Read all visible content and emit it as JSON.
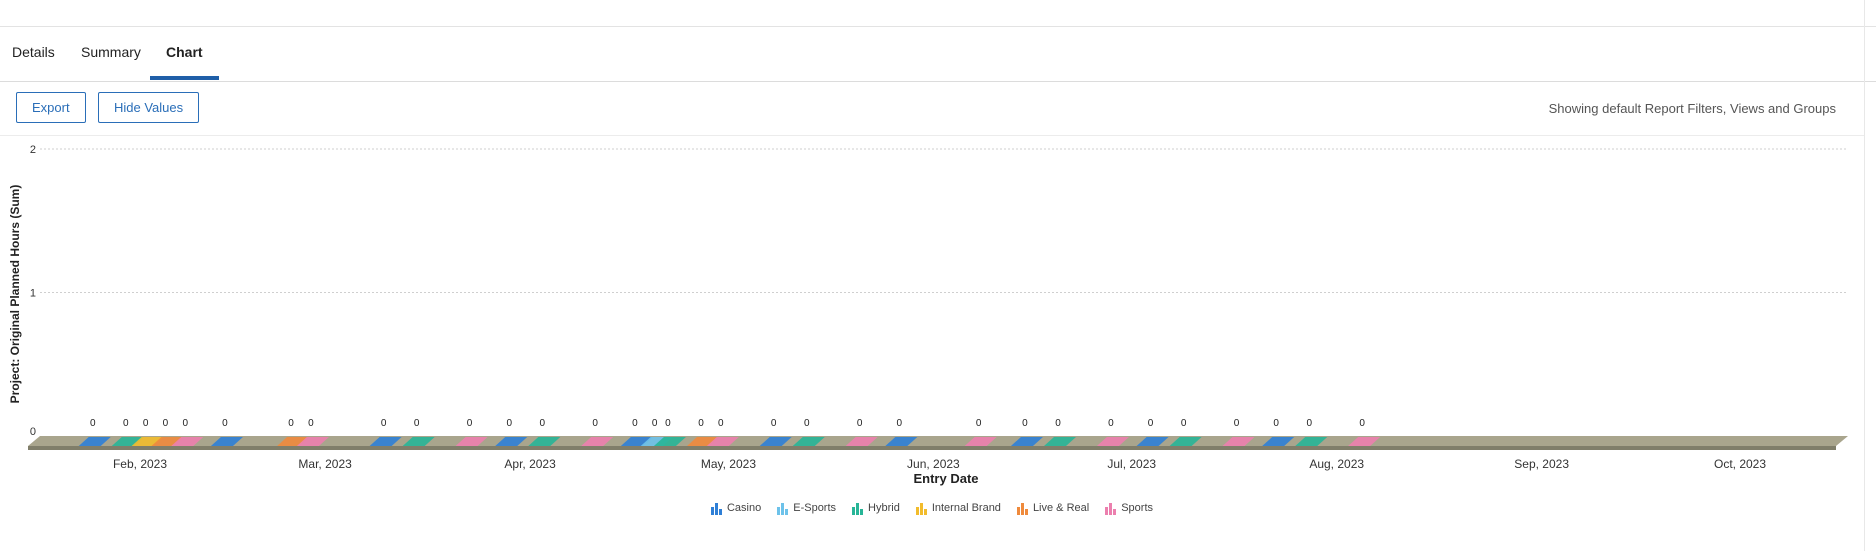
{
  "tabs": [
    {
      "label": "Details",
      "active": false
    },
    {
      "label": "Summary",
      "active": false
    },
    {
      "label": "Chart",
      "active": true
    }
  ],
  "toolbar": {
    "export_label": "Export",
    "hide_values_label": "Hide Values",
    "filter_note": "Showing default Report Filters, Views and Groups"
  },
  "colors": {
    "accent": "#1f5fa8",
    "Casino": "#2e7fd6",
    "E-Sports": "#6dc2ea",
    "Hybrid": "#27b597",
    "Internal Brand": "#f2bc2c",
    "Live & Real": "#ef8a3c",
    "Sports": "#ec7fae"
  },
  "chart_data": {
    "type": "bar",
    "style": "3d",
    "xlabel": "Entry Date",
    "ylabel": "Project: Original Planned Hours (Sum)",
    "ylim": [
      0,
      2
    ],
    "yticks": [
      0,
      1,
      2
    ],
    "grid": true,
    "legend_position": "bottom",
    "x_tick_labels": [
      "Feb, 2023",
      "Mar, 2023",
      "Apr, 2023",
      "May, 2023",
      "Jun, 2023",
      "Jul, 2023",
      "Aug, 2023",
      "Sep, 2023",
      "Oct, 2023"
    ],
    "legend": [
      "Casino",
      "E-Sports",
      "Hybrid",
      "Internal Brand",
      "Live & Real",
      "Sports"
    ],
    "points": [
      {
        "date": "2023-01-25",
        "series": "Casino",
        "value": 0
      },
      {
        "date": "2023-01-30",
        "series": "Hybrid",
        "value": 0
      },
      {
        "date": "2023-02-02",
        "series": "Internal Brand",
        "value": 0
      },
      {
        "date": "2023-02-05",
        "series": "Live & Real",
        "value": 0
      },
      {
        "date": "2023-02-08",
        "series": "Sports",
        "value": 0
      },
      {
        "date": "2023-02-14",
        "series": "Casino",
        "value": 0
      },
      {
        "date": "2023-02-24",
        "series": "Live & Real",
        "value": 0
      },
      {
        "date": "2023-02-27",
        "series": "Sports",
        "value": 0
      },
      {
        "date": "2023-03-10",
        "series": "Casino",
        "value": 0
      },
      {
        "date": "2023-03-15",
        "series": "Hybrid",
        "value": 0
      },
      {
        "date": "2023-03-23",
        "series": "Sports",
        "value": 0
      },
      {
        "date": "2023-03-29",
        "series": "Casino",
        "value": 0
      },
      {
        "date": "2023-04-03",
        "series": "Hybrid",
        "value": 0
      },
      {
        "date": "2023-04-11",
        "series": "Sports",
        "value": 0
      },
      {
        "date": "2023-04-17",
        "series": "Casino",
        "value": 0
      },
      {
        "date": "2023-04-20",
        "series": "E-Sports",
        "value": 0
      },
      {
        "date": "2023-04-22",
        "series": "Hybrid",
        "value": 0
      },
      {
        "date": "2023-04-27",
        "series": "Live & Real",
        "value": 0
      },
      {
        "date": "2023-04-30",
        "series": "Sports",
        "value": 0
      },
      {
        "date": "2023-05-08",
        "series": "Casino",
        "value": 0
      },
      {
        "date": "2023-05-13",
        "series": "Hybrid",
        "value": 0
      },
      {
        "date": "2023-05-21",
        "series": "Sports",
        "value": 0
      },
      {
        "date": "2023-05-27",
        "series": "Casino",
        "value": 0
      },
      {
        "date": "2023-06-08",
        "series": "Sports",
        "value": 0
      },
      {
        "date": "2023-06-15",
        "series": "Casino",
        "value": 0
      },
      {
        "date": "2023-06-20",
        "series": "Hybrid",
        "value": 0
      },
      {
        "date": "2023-06-28",
        "series": "Sports",
        "value": 0
      },
      {
        "date": "2023-07-04",
        "series": "Casino",
        "value": 0
      },
      {
        "date": "2023-07-09",
        "series": "Hybrid",
        "value": 0
      },
      {
        "date": "2023-07-17",
        "series": "Sports",
        "value": 0
      },
      {
        "date": "2023-07-23",
        "series": "Casino",
        "value": 0
      },
      {
        "date": "2023-07-28",
        "series": "Hybrid",
        "value": 0
      },
      {
        "date": "2023-08-05",
        "series": "Sports",
        "value": 0
      }
    ]
  }
}
